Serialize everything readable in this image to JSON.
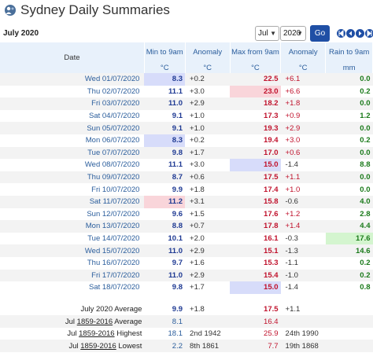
{
  "header": {
    "title": "Sydney Daily Summaries"
  },
  "controls": {
    "month_label": "July 2020",
    "month_select": "Jul",
    "year_select": "2020",
    "go_label": "Go"
  },
  "columns": {
    "date": "Date",
    "min": "Min to 9am",
    "min_unit": "°C",
    "anomaly_min": "Anomaly",
    "anomaly_min_unit": "°C",
    "max": "Max from 9am",
    "max_unit": "°C",
    "anomaly_max": "Anomaly",
    "anomaly_max_unit": "°C",
    "rain": "Rain to 9am",
    "rain_unit": "mm"
  },
  "rows": [
    {
      "date": "Wed 01/07/2020",
      "min": "8.3",
      "amin": "+0.2",
      "max": "22.5",
      "amax": "+6.1",
      "rain": "0.0",
      "hl_min": "blue",
      "hl_max": "",
      "hl_rain": ""
    },
    {
      "date": "Thu 02/07/2020",
      "min": "11.1",
      "amin": "+3.0",
      "max": "23.0",
      "amax": "+6.6",
      "rain": "0.2",
      "hl_min": "",
      "hl_max": "red",
      "hl_rain": ""
    },
    {
      "date": "Fri 03/07/2020",
      "min": "11.0",
      "amin": "+2.9",
      "max": "18.2",
      "amax": "+1.8",
      "rain": "0.0",
      "hl_min": "",
      "hl_max": "",
      "hl_rain": ""
    },
    {
      "date": "Sat 04/07/2020",
      "min": "9.1",
      "amin": "+1.0",
      "max": "17.3",
      "amax": "+0.9",
      "rain": "1.2",
      "hl_min": "",
      "hl_max": "",
      "hl_rain": ""
    },
    {
      "date": "Sun 05/07/2020",
      "min": "9.1",
      "amin": "+1.0",
      "max": "19.3",
      "amax": "+2.9",
      "rain": "0.0",
      "hl_min": "",
      "hl_max": "",
      "hl_rain": ""
    },
    {
      "date": "Mon 06/07/2020",
      "min": "8.3",
      "amin": "+0.2",
      "max": "19.4",
      "amax": "+3.0",
      "rain": "0.2",
      "hl_min": "blue",
      "hl_max": "",
      "hl_rain": ""
    },
    {
      "date": "Tue 07/07/2020",
      "min": "9.8",
      "amin": "+1.7",
      "max": "17.0",
      "amax": "+0.6",
      "rain": "0.0",
      "hl_min": "",
      "hl_max": "",
      "hl_rain": ""
    },
    {
      "date": "Wed 08/07/2020",
      "min": "11.1",
      "amin": "+3.0",
      "max": "15.0",
      "amax": "-1.4",
      "rain": "8.8",
      "hl_min": "",
      "hl_max": "blue",
      "hl_rain": ""
    },
    {
      "date": "Thu 09/07/2020",
      "min": "8.7",
      "amin": "+0.6",
      "max": "17.5",
      "amax": "+1.1",
      "rain": "0.0",
      "hl_min": "",
      "hl_max": "",
      "hl_rain": ""
    },
    {
      "date": "Fri 10/07/2020",
      "min": "9.9",
      "amin": "+1.8",
      "max": "17.4",
      "amax": "+1.0",
      "rain": "0.0",
      "hl_min": "",
      "hl_max": "",
      "hl_rain": ""
    },
    {
      "date": "Sat 11/07/2020",
      "min": "11.2",
      "amin": "+3.1",
      "max": "15.8",
      "amax": "-0.6",
      "rain": "4.0",
      "hl_min": "red",
      "hl_max": "",
      "hl_rain": ""
    },
    {
      "date": "Sun 12/07/2020",
      "min": "9.6",
      "amin": "+1.5",
      "max": "17.6",
      "amax": "+1.2",
      "rain": "2.8",
      "hl_min": "",
      "hl_max": "",
      "hl_rain": ""
    },
    {
      "date": "Mon 13/07/2020",
      "min": "8.8",
      "amin": "+0.7",
      "max": "17.8",
      "amax": "+1.4",
      "rain": "4.4",
      "hl_min": "",
      "hl_max": "",
      "hl_rain": ""
    },
    {
      "date": "Tue 14/07/2020",
      "min": "10.1",
      "amin": "+2.0",
      "max": "16.1",
      "amax": "-0.3",
      "rain": "17.6",
      "hl_min": "",
      "hl_max": "",
      "hl_rain": "green"
    },
    {
      "date": "Wed 15/07/2020",
      "min": "11.0",
      "amin": "+2.9",
      "max": "15.1",
      "amax": "-1.3",
      "rain": "14.6",
      "hl_min": "",
      "hl_max": "",
      "hl_rain": ""
    },
    {
      "date": "Thu 16/07/2020",
      "min": "9.7",
      "amin": "+1.6",
      "max": "15.3",
      "amax": "-1.1",
      "rain": "0.2",
      "hl_min": "",
      "hl_max": "",
      "hl_rain": ""
    },
    {
      "date": "Fri 17/07/2020",
      "min": "11.0",
      "amin": "+2.9",
      "max": "15.4",
      "amax": "-1.0",
      "rain": "0.2",
      "hl_min": "",
      "hl_max": "",
      "hl_rain": ""
    },
    {
      "date": "Sat 18/07/2020",
      "min": "9.8",
      "amin": "+1.7",
      "max": "15.0",
      "amax": "-1.4",
      "rain": "0.8",
      "hl_min": "",
      "hl_max": "blue",
      "hl_rain": ""
    }
  ],
  "summary": {
    "avg_2020_label": "July 2020 Average",
    "avg_2020_min": "9.9",
    "avg_2020_amin": "+1.8",
    "avg_2020_max": "17.5",
    "avg_2020_amax": "+1.1",
    "hist_avg_label_prefix": "Jul ",
    "hist_avg_label_years": "1859-2016",
    "hist_avg_label_suffix": " Average",
    "hist_avg_min": "8.1",
    "hist_avg_max": "16.4",
    "highest_label_prefix": "Jul ",
    "highest_label_years": "1859-2016",
    "highest_label_suffix": " Highest",
    "highest_min": "18.1",
    "highest_min_date": "2nd 1942",
    "highest_max": "25.9",
    "highest_max_date": "24th 1990",
    "lowest_label_prefix": "Jul ",
    "lowest_label_years": "1859-2016",
    "lowest_label_suffix": " Lowest",
    "lowest_min": "2.2",
    "lowest_min_date": "8th 1861",
    "lowest_max": "7.7",
    "lowest_max_date": "19th 1868"
  },
  "colors": {
    "header_bg": "#e8f1fb",
    "min_text": "#1f3a93",
    "max_text": "#c0122c",
    "rain_text": "#1a7a1a",
    "go_button": "#1f4fa5"
  },
  "icons": {
    "title": "globe-person-icon",
    "nav": [
      "first-icon",
      "prev-icon",
      "next-icon",
      "last-icon"
    ]
  }
}
